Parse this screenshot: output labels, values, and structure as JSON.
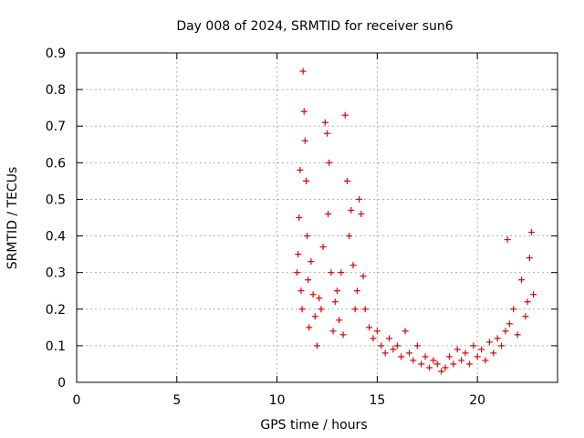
{
  "chart_data": {
    "type": "scatter",
    "title": "Day 008 of 2024, SRMTID for receiver sun6",
    "xlabel": "GPS time / hours",
    "ylabel": "SRMTID / TECUs",
    "xlim": [
      0,
      24
    ],
    "ylim": [
      0,
      0.9
    ],
    "xticks": [
      0,
      5,
      10,
      15,
      20
    ],
    "yticks": [
      0,
      0.1,
      0.2,
      0.3,
      0.4,
      0.5,
      0.6,
      0.7,
      0.8,
      0.9
    ],
    "grid": true,
    "marker": "+",
    "color": "#e00000",
    "series": [
      {
        "name": "SRMTID",
        "x": [
          11.0,
          11.05,
          11.1,
          11.15,
          11.2,
          11.25,
          11.3,
          11.35,
          11.4,
          11.45,
          11.5,
          11.55,
          11.6,
          11.7,
          11.8,
          11.9,
          12.0,
          12.1,
          12.2,
          12.3,
          12.4,
          12.5,
          12.55,
          12.6,
          12.7,
          12.8,
          12.9,
          13.0,
          13.1,
          13.2,
          13.3,
          13.4,
          13.5,
          13.6,
          13.7,
          13.8,
          13.9,
          14.0,
          14.1,
          14.2,
          14.3,
          14.4,
          14.6,
          14.8,
          15.0,
          15.2,
          15.4,
          15.6,
          15.8,
          16.0,
          16.2,
          16.4,
          16.6,
          16.8,
          17.0,
          17.2,
          17.4,
          17.6,
          17.8,
          18.0,
          18.2,
          18.4,
          18.6,
          18.8,
          19.0,
          19.2,
          19.4,
          19.6,
          19.8,
          20.0,
          20.2,
          20.4,
          20.6,
          20.8,
          21.0,
          21.2,
          21.4,
          21.5,
          21.6,
          21.8,
          22.0,
          22.2,
          22.4,
          22.5,
          22.6,
          22.7,
          22.8
        ],
        "y": [
          0.3,
          0.35,
          0.45,
          0.58,
          0.25,
          0.2,
          0.85,
          0.74,
          0.66,
          0.55,
          0.4,
          0.28,
          0.15,
          0.33,
          0.24,
          0.18,
          0.1,
          0.23,
          0.2,
          0.37,
          0.71,
          0.68,
          0.46,
          0.6,
          0.3,
          0.14,
          0.22,
          0.25,
          0.17,
          0.3,
          0.13,
          0.73,
          0.55,
          0.4,
          0.47,
          0.32,
          0.2,
          0.25,
          0.5,
          0.46,
          0.29,
          0.2,
          0.15,
          0.12,
          0.14,
          0.1,
          0.08,
          0.12,
          0.09,
          0.1,
          0.07,
          0.14,
          0.08,
          0.06,
          0.1,
          0.05,
          0.07,
          0.04,
          0.06,
          0.05,
          0.03,
          0.04,
          0.07,
          0.05,
          0.09,
          0.06,
          0.08,
          0.05,
          0.1,
          0.07,
          0.09,
          0.06,
          0.11,
          0.08,
          0.12,
          0.1,
          0.14,
          0.39,
          0.16,
          0.2,
          0.13,
          0.28,
          0.18,
          0.22,
          0.34,
          0.41,
          0.24
        ]
      }
    ]
  }
}
